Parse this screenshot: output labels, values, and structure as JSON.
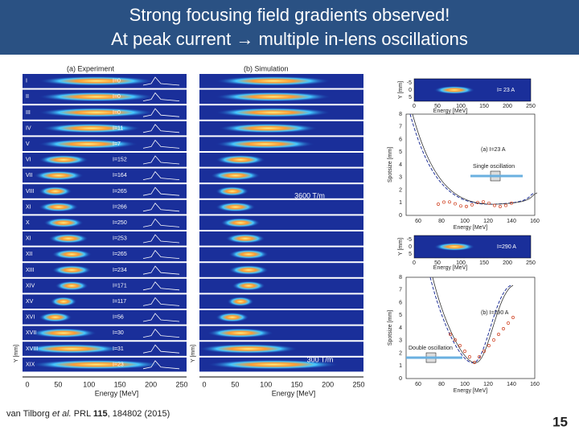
{
  "header": {
    "title_line1": "Strong focusing field gradients observed!",
    "title_line2": "At peak current → multiple in-lens oscillations"
  },
  "experiment": {
    "label": "(a) Experiment",
    "rows": [
      {
        "id": "I",
        "current": "I=0"
      },
      {
        "id": "II",
        "current": "I=0"
      },
      {
        "id": "III",
        "current": "I=0"
      },
      {
        "id": "IV",
        "current": "I=11"
      },
      {
        "id": "V",
        "current": "I=7"
      },
      {
        "id": "VI",
        "current": "I=152"
      },
      {
        "id": "VII",
        "current": "I=164"
      },
      {
        "id": "VIII",
        "current": "I=265"
      },
      {
        "id": "XI",
        "current": "I=266"
      },
      {
        "id": "X",
        "current": "I=250"
      },
      {
        "id": "XI",
        "current": "I=253"
      },
      {
        "id": "XII",
        "current": "I=265"
      },
      {
        "id": "XIII",
        "current": "I=234"
      },
      {
        "id": "XIV",
        "current": "I=171"
      },
      {
        "id": "XV",
        "current": "I=117"
      },
      {
        "id": "XVI",
        "current": "I=56"
      },
      {
        "id": "XVII",
        "current": "I=30"
      },
      {
        "id": "XVIII",
        "current": "I=31"
      },
      {
        "id": "XIX",
        "current": "I=23"
      }
    ],
    "x_axis": {
      "label": "Energy [MeV]",
      "ticks": [
        "0",
        "50",
        "100",
        "150",
        "200",
        "250"
      ]
    },
    "y_axis": {
      "label": "Y [mm]"
    }
  },
  "simulation": {
    "label": "(b) Simulation",
    "annotations": [
      "3600 T/m",
      "300 T/m"
    ],
    "x_axis": {
      "label": "Energy [MeV]",
      "ticks": [
        "0",
        "50",
        "100",
        "150",
        "200",
        "250"
      ]
    },
    "y_axis": {
      "label": "Y [mm]"
    }
  },
  "spotsize": [
    {
      "inset": {
        "label": "I= 23 A",
        "y_label": "Y [mm]",
        "y_ticks": [
          "-5",
          "0",
          "5"
        ],
        "x_label": "Energy [MeV]",
        "x_ticks": [
          "0",
          "50",
          "100",
          "150",
          "200",
          "250"
        ]
      },
      "plot": {
        "label": "(a) I=23 A",
        "note": "Single oscillation",
        "y_label": "Spotsize [mm]",
        "y_ticks": [
          "0",
          "1",
          "2",
          "3",
          "4",
          "5",
          "6",
          "7",
          "8"
        ],
        "x_label": "Energy [MeV]",
        "x_ticks": [
          "60",
          "80",
          "100",
          "120",
          "140",
          "160"
        ]
      }
    },
    {
      "inset": {
        "label": "I=290 A",
        "y_label": "Y [mm]",
        "y_ticks": [
          "-5",
          "0",
          "5"
        ],
        "x_label": "Energy [MeV]",
        "x_ticks": [
          "0",
          "50",
          "100",
          "150",
          "200",
          "250"
        ]
      },
      "plot": {
        "label": "(b) I=290 A",
        "note": "Double oscillation",
        "y_label": "Spotsize [mm]",
        "y_ticks": [
          "0",
          "1",
          "2",
          "3",
          "4",
          "5",
          "6",
          "7",
          "8"
        ],
        "x_label": "Energy [MeV]",
        "x_ticks": [
          "60",
          "80",
          "100",
          "120",
          "140",
          "160"
        ]
      }
    }
  ],
  "citation": {
    "authors": "van Tilborg",
    "etal": "et al.",
    "journal": "PRL",
    "volume": "115",
    "pages": ", 184802 (2015)"
  },
  "page_number": "15"
}
